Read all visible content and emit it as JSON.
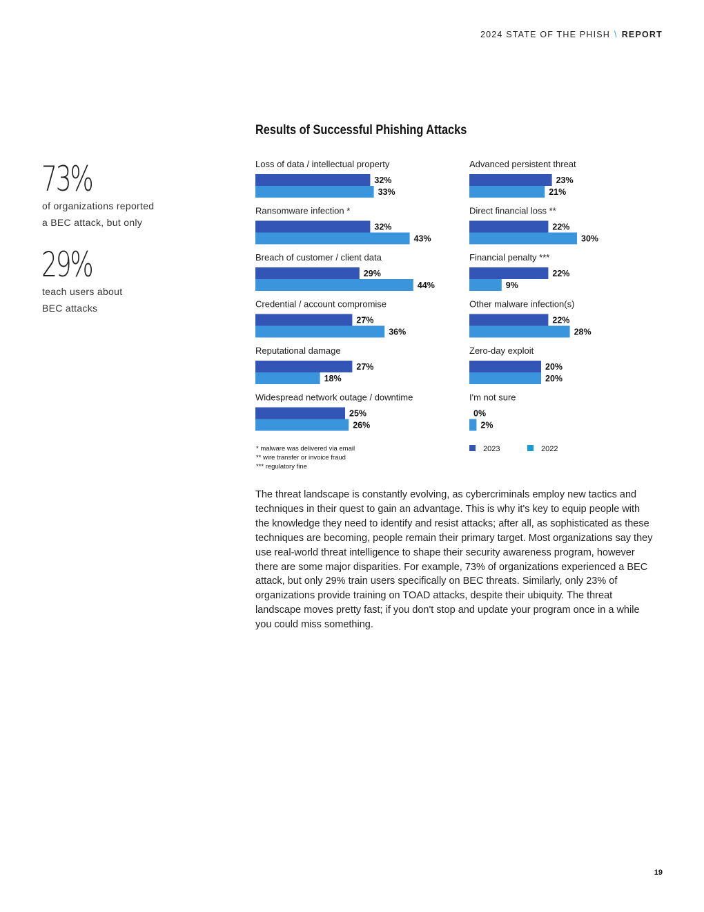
{
  "header": {
    "title": "2024 STATE OF THE PHISH",
    "separator": "\\",
    "section": "REPORT"
  },
  "stats": [
    {
      "value": "73%",
      "text_line1": "of organizations reported",
      "text_line2": "a BEC attack, but only"
    },
    {
      "value": "29%",
      "text_line1": "teach users about",
      "text_line2": "BEC attacks"
    }
  ],
  "colors": {
    "series_2023": "#3355b5",
    "series_2022": "#3b95dd",
    "legend_2022": "#1a9ad8"
  },
  "chart_data": {
    "type": "bar",
    "orientation": "horizontal",
    "title": "Results of Successful Phishing Attacks",
    "value_suffix": "%",
    "series": [
      {
        "name": "2023"
      },
      {
        "name": "2022"
      }
    ],
    "categories": [
      {
        "label": "Loss of data / intellectual property",
        "v2023": 32,
        "v2022": 33
      },
      {
        "label": "Ransomware infection *",
        "v2023": 32,
        "v2022": 43
      },
      {
        "label": "Breach of customer / client data",
        "v2023": 29,
        "v2022": 44
      },
      {
        "label": "Credential / account compromise",
        "v2023": 27,
        "v2022": 36
      },
      {
        "label": "Reputational damage",
        "v2023": 27,
        "v2022": 18
      },
      {
        "label": "Widespread network outage / downtime",
        "v2023": 25,
        "v2022": 26
      },
      {
        "label": "Advanced persistent threat",
        "v2023": 23,
        "v2022": 21
      },
      {
        "label": "Direct financial loss **",
        "v2023": 22,
        "v2022": 30
      },
      {
        "label": "Financial penalty ***",
        "v2023": 22,
        "v2022": 9
      },
      {
        "label": "Other malware infection(s)",
        "v2023": 22,
        "v2022": 28
      },
      {
        "label": "Zero-day exploit",
        "v2023": 20,
        "v2022": 20
      },
      {
        "label": "I'm not sure",
        "v2023": 0,
        "v2022": 2
      }
    ],
    "legend": [
      "2023",
      "2022"
    ],
    "footnotes": [
      "* malware was delivered via email",
      "** wire transfer or invoice fraud",
      "*** regulatory fine"
    ]
  },
  "body_text": "The threat landscape is constantly evolving, as cybercriminals employ new tactics and techniques in their quest to gain an advantage. This is why it's key to equip people with the knowledge they need to identify and resist attacks; after all, as sophisticated as these techniques are becoming, people remain their primary target. Most organizations say they use real-world threat intelligence to shape their security awareness program, however there are some major disparities. For example, 73% of organizations experienced a BEC attack, but only 29% train users specifically on BEC threats. Similarly, only 23% of organizations provide training on TOAD attacks, despite their ubiquity. The threat landscape moves pretty fast; if you don't stop and update your program once in a while you could miss something.",
  "page_number": "19"
}
